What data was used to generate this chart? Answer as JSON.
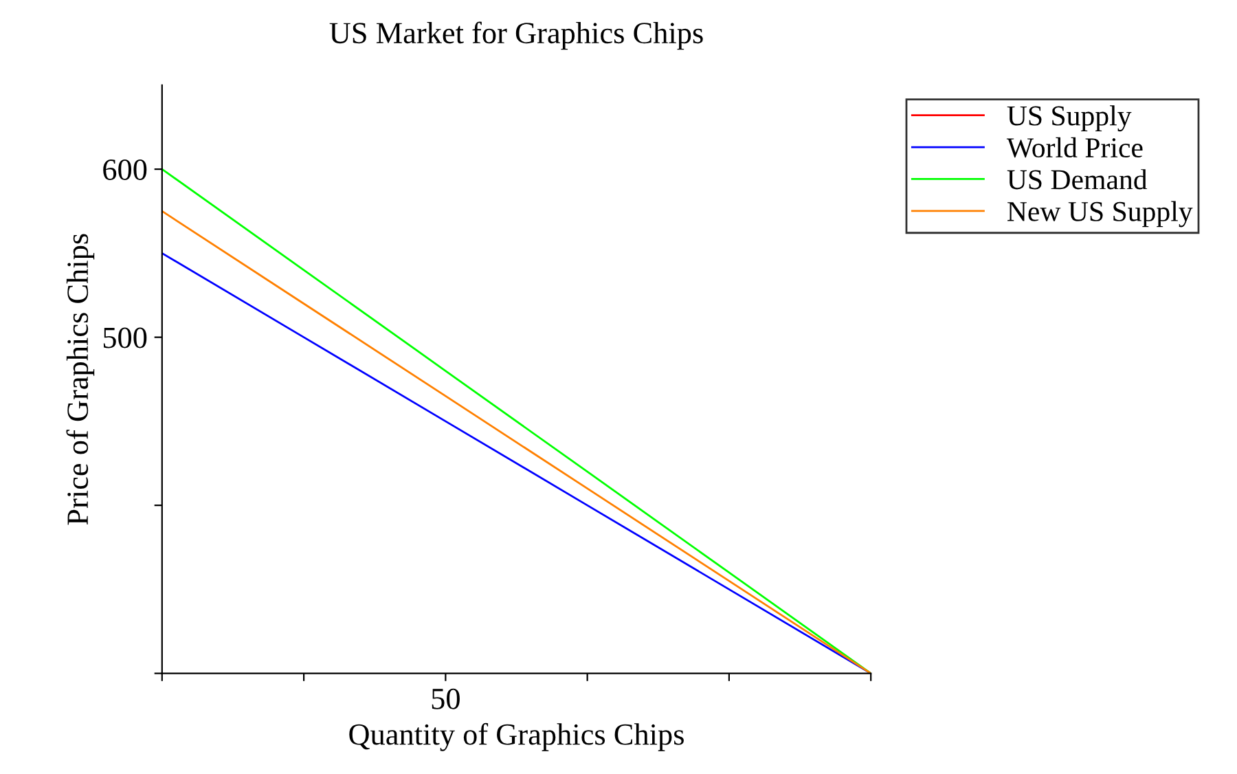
{
  "chart_data": {
    "type": "line",
    "title": "US Market for Graphics Chips",
    "xlabel": "Quantity of Graphics Chips",
    "ylabel": "Price of Graphics Chips",
    "categories": [
      null,
      null,
      "50",
      null,
      null,
      null
    ],
    "series": [
      {
        "name": "US Supply",
        "color": "#ff0000",
        "values": [
          null,
          null,
          null,
          null,
          null,
          null
        ]
      },
      {
        "name": "World Price",
        "color": "#0000ff",
        "values": [
          550,
          500,
          450,
          400,
          350,
          300
        ]
      },
      {
        "name": "US Demand",
        "color": "#00ff00",
        "values": [
          600,
          540,
          480,
          420,
          360,
          300
        ]
      },
      {
        "name": "New US Supply",
        "color": "#ff8000",
        "values": [
          575,
          520,
          465,
          410,
          355,
          300
        ]
      }
    ],
    "ylim": [
      300,
      650
    ],
    "yticks": [
      {
        "value": 300,
        "label": null
      },
      {
        "value": 400,
        "label": null
      },
      {
        "value": 500,
        "label": "500"
      },
      {
        "value": 600,
        "label": "600"
      }
    ],
    "grid": false,
    "legend": "top right",
    "marker": "none",
    "line_style": "solid"
  }
}
